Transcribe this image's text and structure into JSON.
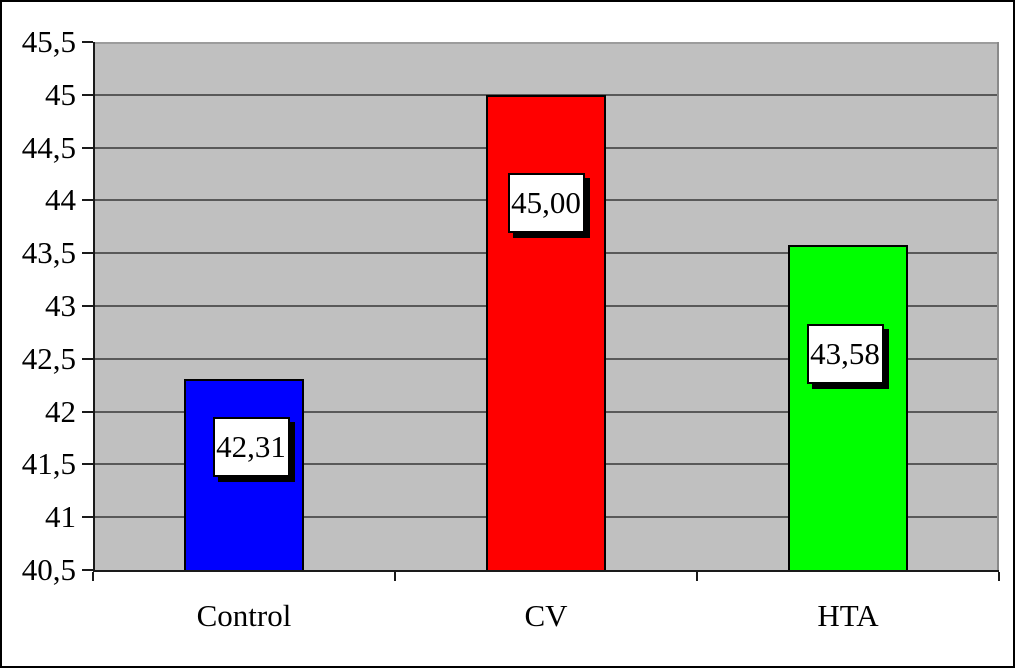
{
  "chart_data": {
    "type": "bar",
    "title": "",
    "xlabel": "",
    "ylabel": "",
    "categories": [
      "Control",
      "CV",
      "HTA"
    ],
    "values": [
      42.31,
      45.0,
      43.58
    ],
    "data_labels": [
      "42,31",
      "45,00",
      "43,58"
    ],
    "bar_colors": [
      "#0000ff",
      "#ff0000",
      "#00ff00"
    ],
    "ylim": [
      40.5,
      45.5
    ],
    "ytick_step": 0.5,
    "ytick_labels": [
      "40,5",
      "41",
      "41,5",
      "42",
      "42,5",
      "43",
      "43,5",
      "44",
      "44,5",
      "45",
      "45,5"
    ],
    "decimal_separator": ",",
    "grid": true,
    "legend": false,
    "colors": {
      "plot_background": "#c0c0c0",
      "gridline": "#595959",
      "axis": "#1a1a1a",
      "bar_border": "#000000",
      "label_box_background": "#ffffff",
      "label_box_border": "#000000",
      "label_box_shadow": "#000000",
      "figure_background": "#ffffff",
      "figure_border": "#000000"
    }
  }
}
